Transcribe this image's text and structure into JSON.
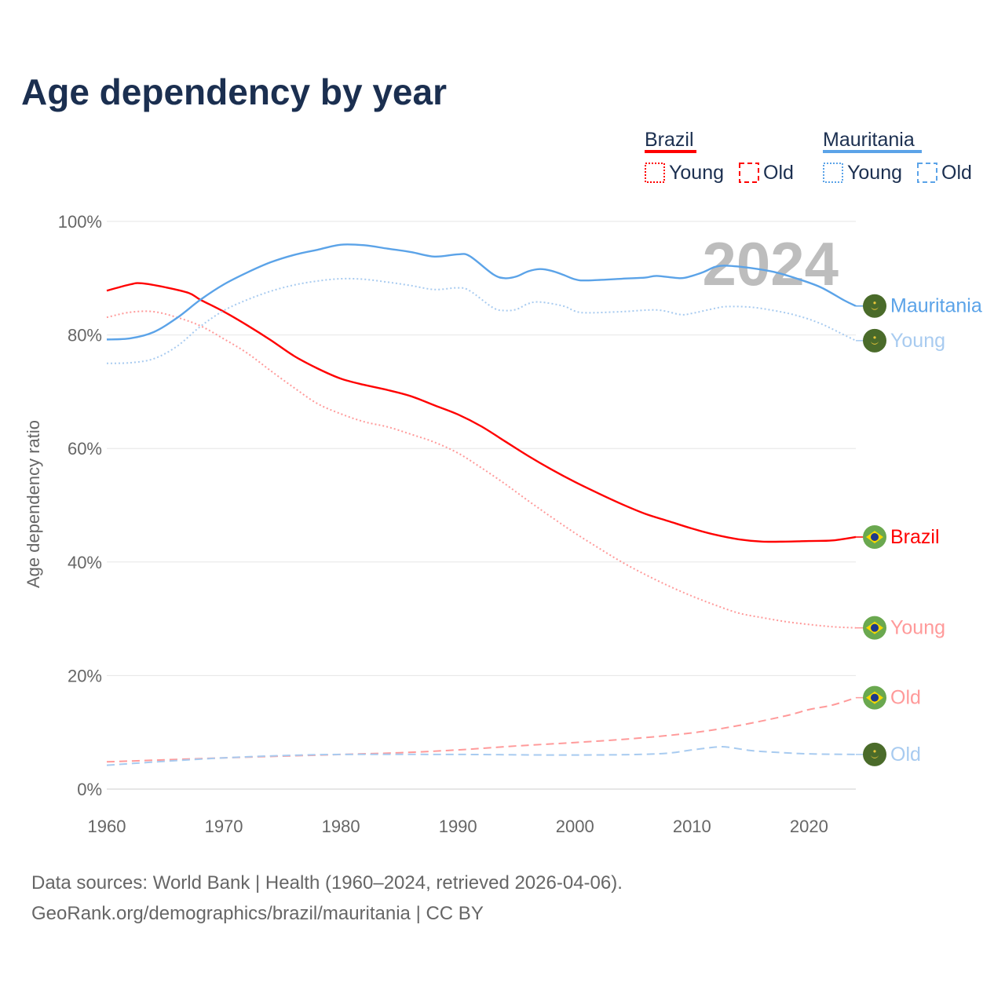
{
  "chart_data": {
    "type": "line",
    "title": "Age dependency by year",
    "xlabel": "",
    "ylabel": "Age dependency ratio",
    "xlim": [
      1960,
      2024
    ],
    "ylim": [
      0,
      100
    ],
    "x_ticks": [
      "1960",
      "1970",
      "1980",
      "1990",
      "2000",
      "2010",
      "2020"
    ],
    "y_ticks": [
      "0%",
      "20%",
      "40%",
      "60%",
      "80%",
      "100%"
    ],
    "grid": true,
    "current_year": "2024",
    "legend": {
      "placement": "top-right",
      "groups": [
        {
          "name": "Brazil",
          "items": [
            "Young",
            "Old"
          ]
        },
        {
          "name": "Mauritania",
          "items": [
            "Young",
            "Old"
          ]
        }
      ]
    },
    "series": [
      {
        "name": "Brazil",
        "label": "Brazil",
        "country": "Brazil",
        "style": "solid",
        "color": "#ff0000",
        "x": [
          1960,
          1962,
          1963,
          1965,
          1967,
          1968,
          1970,
          1972,
          1974,
          1976,
          1978,
          1980,
          1982,
          1984,
          1986,
          1988,
          1990,
          1992,
          1994,
          1996,
          1998,
          2000,
          2002,
          2004,
          2006,
          2008,
          2010,
          2012,
          2014,
          2016,
          2018,
          2020,
          2022,
          2024
        ],
        "y": [
          87.8,
          88.9,
          89.1,
          88.4,
          87.4,
          86.2,
          84.1,
          81.7,
          79.1,
          76.3,
          74.1,
          72.3,
          71.2,
          70.3,
          69.2,
          67.6,
          66.0,
          63.9,
          61.3,
          58.7,
          56.3,
          54.1,
          52.1,
          50.2,
          48.5,
          47.2,
          45.9,
          44.8,
          44.0,
          43.6,
          43.6,
          43.7,
          43.8,
          44.4
        ]
      },
      {
        "name": "Brazil Young",
        "label": "Young",
        "country": "Brazil",
        "style": "dotted",
        "color": "#ff9a9a",
        "x": [
          1960,
          1962,
          1964,
          1966,
          1968,
          1970,
          1972,
          1974,
          1976,
          1978,
          1980,
          1982,
          1984,
          1986,
          1988,
          1990,
          1992,
          1994,
          1996,
          1998,
          2000,
          2002,
          2004,
          2006,
          2008,
          2010,
          2012,
          2014,
          2016,
          2018,
          2020,
          2022,
          2024
        ],
        "y": [
          83.1,
          84.0,
          84.1,
          83.1,
          81.6,
          79.3,
          76.8,
          73.7,
          70.7,
          67.9,
          66.1,
          64.7,
          63.8,
          62.5,
          61.1,
          59.2,
          56.6,
          53.8,
          50.8,
          47.9,
          45.1,
          42.5,
          40.0,
          37.8,
          35.8,
          34.0,
          32.4,
          31.0,
          30.2,
          29.5,
          29.0,
          28.6,
          28.4
        ]
      },
      {
        "name": "Brazil Old",
        "label": "Old",
        "country": "Brazil",
        "style": "dashed",
        "color": "#ff9a9a",
        "x": [
          1960,
          1970,
          1980,
          1985,
          1990,
          1995,
          2000,
          2005,
          2010,
          2014,
          2018,
          2020,
          2022,
          2024
        ],
        "y": [
          4.8,
          5.5,
          6.1,
          6.4,
          6.9,
          7.6,
          8.2,
          8.9,
          9.9,
          11.2,
          12.9,
          14.0,
          14.8,
          16.1
        ]
      },
      {
        "name": "Mauritania",
        "label": "Mauritania",
        "country": "Mauritania",
        "style": "solid",
        "color": "#5ba3e8",
        "x": [
          1960,
          1962,
          1964,
          1966,
          1968,
          1970,
          1972,
          1974,
          1976,
          1978,
          1980,
          1982,
          1984,
          1986,
          1988,
          1990,
          1991,
          1993,
          1994,
          1995,
          1996,
          1997,
          1998,
          1999,
          2000,
          2001,
          2004,
          2006,
          2007,
          2009,
          2010,
          2011,
          2012,
          2013,
          2015,
          2017,
          2019,
          2021,
          2023,
          2024
        ],
        "y": [
          79.2,
          79.4,
          80.5,
          83.0,
          86.2,
          88.9,
          91.0,
          92.8,
          94.1,
          95.0,
          95.9,
          95.8,
          95.2,
          94.6,
          93.8,
          94.2,
          93.9,
          90.7,
          90.0,
          90.3,
          91.2,
          91.6,
          91.3,
          90.6,
          89.8,
          89.6,
          89.9,
          90.1,
          90.4,
          90.0,
          90.4,
          91.1,
          92.0,
          92.2,
          91.8,
          91.1,
          89.9,
          88.4,
          86.1,
          85.1
        ]
      },
      {
        "name": "Mauritania Young",
        "label": "Young",
        "country": "Mauritania",
        "style": "dotted",
        "color": "#a8cbf0",
        "x": [
          1960,
          1962,
          1964,
          1966,
          1968,
          1970,
          1972,
          1974,
          1976,
          1978,
          1980,
          1982,
          1984,
          1986,
          1988,
          1990,
          1991,
          1993,
          1994,
          1995,
          1996,
          1997,
          1999,
          2000,
          2001,
          2004,
          2007,
          2009,
          2010,
          2012,
          2013,
          2015,
          2017,
          2019,
          2021,
          2023,
          2024
        ],
        "y": [
          75.0,
          75.1,
          75.8,
          78.0,
          81.5,
          84.3,
          86.2,
          87.7,
          88.8,
          89.5,
          89.9,
          89.8,
          89.3,
          88.7,
          88.0,
          88.3,
          87.8,
          84.8,
          84.3,
          84.5,
          85.5,
          85.8,
          85.1,
          84.2,
          83.9,
          84.1,
          84.4,
          83.6,
          83.8,
          84.7,
          85.0,
          84.9,
          84.3,
          83.4,
          82.0,
          80.0,
          79.0
        ]
      },
      {
        "name": "Mauritania Old",
        "label": "Old",
        "country": "Mauritania",
        "style": "dashed",
        "color": "#a8cbf0",
        "x": [
          1960,
          1965,
          1970,
          1975,
          1980,
          1990,
          2000,
          2007,
          2010,
          2012,
          2013,
          2015,
          2017,
          2020,
          2024
        ],
        "y": [
          4.2,
          4.9,
          5.5,
          5.9,
          6.1,
          6.1,
          6.0,
          6.2,
          6.9,
          7.4,
          7.4,
          6.8,
          6.5,
          6.2,
          6.1
        ]
      }
    ]
  },
  "footer": {
    "line1": "Data sources: World Bank | Health (1960–2024, retrieved 2026-04-06).",
    "line2": "GeoRank.org/demographics/brazil/mauritania | CC BY"
  }
}
